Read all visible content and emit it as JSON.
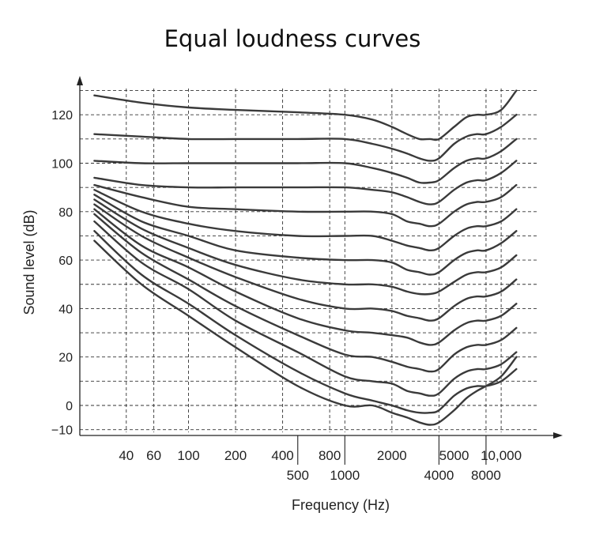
{
  "chart_data": {
    "type": "line",
    "title": "Equal loudness curves",
    "xlabel": "Frequency (Hz)",
    "ylabel": "Sound level (dB)",
    "x_scale": "log",
    "ylim": [
      -10,
      130
    ],
    "grid": true,
    "xticks_upper": [
      "40",
      "60",
      "100",
      "200",
      "400",
      "800",
      "2000",
      "5000",
      "10,000"
    ],
    "xticks_lower": [
      "500",
      "1000",
      "4000",
      "8000"
    ],
    "yticks": [
      "120",
      "100",
      "80",
      "60",
      "40",
      "20",
      "0",
      "−10"
    ],
    "series": [
      {
        "x": [
          25,
          50,
          100,
          200,
          500,
          1000,
          1500,
          2000,
          2500,
          3000,
          3500,
          4000,
          5000,
          6000,
          7000,
          8000,
          10000,
          12500
        ],
        "y": [
          128,
          125,
          123,
          122,
          121,
          120,
          118,
          115,
          112,
          110,
          110,
          110,
          115,
          119,
          120,
          120,
          122,
          130
        ]
      },
      {
        "x": [
          25,
          50,
          100,
          200,
          500,
          1000,
          1500,
          2000,
          2500,
          3000,
          3500,
          4000,
          5000,
          6000,
          7000,
          8000,
          10000,
          12500
        ],
        "y": [
          112,
          111,
          110,
          110,
          110,
          110,
          108,
          106,
          104,
          102,
          101,
          102,
          108,
          111,
          112,
          112,
          115,
          120
        ]
      },
      {
        "x": [
          25,
          50,
          100,
          200,
          500,
          1000,
          1500,
          2000,
          2500,
          3000,
          3500,
          4000,
          5000,
          6000,
          7000,
          8000,
          10000,
          12500
        ],
        "y": [
          101,
          100,
          100,
          100,
          100,
          100,
          98,
          96,
          94,
          92,
          92,
          93,
          98,
          101,
          102,
          102,
          105,
          110
        ]
      },
      {
        "x": [
          25,
          50,
          100,
          200,
          500,
          1000,
          1500,
          2000,
          2500,
          3000,
          3500,
          4000,
          5000,
          6000,
          7000,
          8000,
          10000,
          12500
        ],
        "y": [
          94,
          91,
          90,
          90,
          90,
          90,
          89,
          88,
          86,
          84,
          83,
          84,
          89,
          92,
          93,
          93,
          96,
          101
        ]
      },
      {
        "x": [
          25,
          50,
          100,
          200,
          500,
          1000,
          1500,
          2000,
          2500,
          3000,
          3500,
          4000,
          5000,
          6000,
          7000,
          8000,
          10000,
          12500
        ],
        "y": [
          91,
          86,
          82,
          81,
          80,
          80,
          80,
          79,
          76,
          75,
          74,
          75,
          80,
          83,
          84,
          84,
          86,
          91
        ]
      },
      {
        "x": [
          25,
          50,
          100,
          200,
          500,
          1000,
          1500,
          2000,
          2500,
          3000,
          3500,
          4000,
          5000,
          6000,
          7000,
          8000,
          10000,
          12500
        ],
        "y": [
          89,
          80,
          75,
          72,
          70,
          70,
          70,
          68,
          66,
          65,
          64,
          65,
          70,
          73,
          74,
          74,
          76,
          81
        ]
      },
      {
        "x": [
          25,
          50,
          100,
          200,
          500,
          1000,
          1500,
          2000,
          2500,
          3000,
          3500,
          4000,
          5000,
          6000,
          7000,
          8000,
          10000,
          12500
        ],
        "y": [
          87,
          76,
          70,
          64,
          61,
          60,
          60,
          59,
          56,
          55,
          54,
          55,
          60,
          63,
          64,
          64,
          67,
          72
        ]
      },
      {
        "x": [
          25,
          50,
          100,
          200,
          500,
          1000,
          1500,
          2000,
          2500,
          3000,
          3500,
          4000,
          5000,
          6000,
          7000,
          8000,
          10000,
          12500
        ],
        "y": [
          85,
          73,
          65,
          58,
          52,
          50,
          50,
          49,
          47,
          46,
          46,
          47,
          51,
          54,
          55,
          55,
          57,
          62
        ]
      },
      {
        "x": [
          25,
          50,
          100,
          200,
          500,
          1000,
          1500,
          2000,
          2500,
          3000,
          3500,
          4000,
          5000,
          6000,
          7000,
          8000,
          10000,
          12500
        ],
        "y": [
          83,
          70,
          61,
          53,
          44,
          40,
          40,
          39,
          37,
          36,
          35,
          36,
          41,
          44,
          45,
          45,
          47,
          52
        ]
      },
      {
        "x": [
          25,
          50,
          100,
          200,
          500,
          1000,
          1500,
          2000,
          2500,
          3000,
          3500,
          4000,
          5000,
          6000,
          7000,
          8000,
          10000,
          12500
        ],
        "y": [
          81,
          66,
          57,
          47,
          36,
          31,
          30,
          29,
          28,
          26,
          25,
          26,
          31,
          34,
          35,
          35,
          37,
          42
        ]
      },
      {
        "x": [
          25,
          50,
          100,
          200,
          500,
          1000,
          1500,
          2000,
          2500,
          3000,
          3500,
          4000,
          5000,
          6000,
          7000,
          8000,
          10000,
          12500
        ],
        "y": [
          79,
          63,
          52,
          41,
          29,
          21,
          20,
          18,
          16,
          15,
          14,
          15,
          21,
          24,
          25,
          25,
          27,
          32
        ]
      },
      {
        "x": [
          25,
          50,
          100,
          200,
          500,
          1000,
          1500,
          2000,
          2500,
          3000,
          3500,
          4000,
          5000,
          6000,
          7000,
          8000,
          10000,
          12500
        ],
        "y": [
          76,
          59,
          48,
          35,
          22,
          12,
          10,
          9,
          6,
          5,
          4,
          5,
          11,
          14,
          15,
          15,
          17,
          22
        ]
      },
      {
        "x": [
          25,
          50,
          100,
          200,
          500,
          1000,
          1500,
          2000,
          2500,
          3000,
          3500,
          4000,
          5000,
          6000,
          7000,
          8000,
          10000,
          12500
        ],
        "y": [
          72,
          54,
          42,
          29,
          14,
          5,
          2,
          0,
          -2,
          -3,
          -3,
          -2,
          4,
          7,
          8,
          8,
          10,
          15
        ]
      },
      {
        "x": [
          25,
          50,
          100,
          200,
          500,
          1000,
          1500,
          2000,
          2500,
          3000,
          3500,
          4000,
          5000,
          6000,
          7000,
          8000,
          10000,
          12500
        ],
        "y": [
          68,
          50,
          37,
          24,
          8,
          0,
          0,
          -3,
          -5,
          -7,
          -8,
          -7,
          -2,
          3,
          6,
          8,
          12,
          20
        ]
      }
    ]
  }
}
